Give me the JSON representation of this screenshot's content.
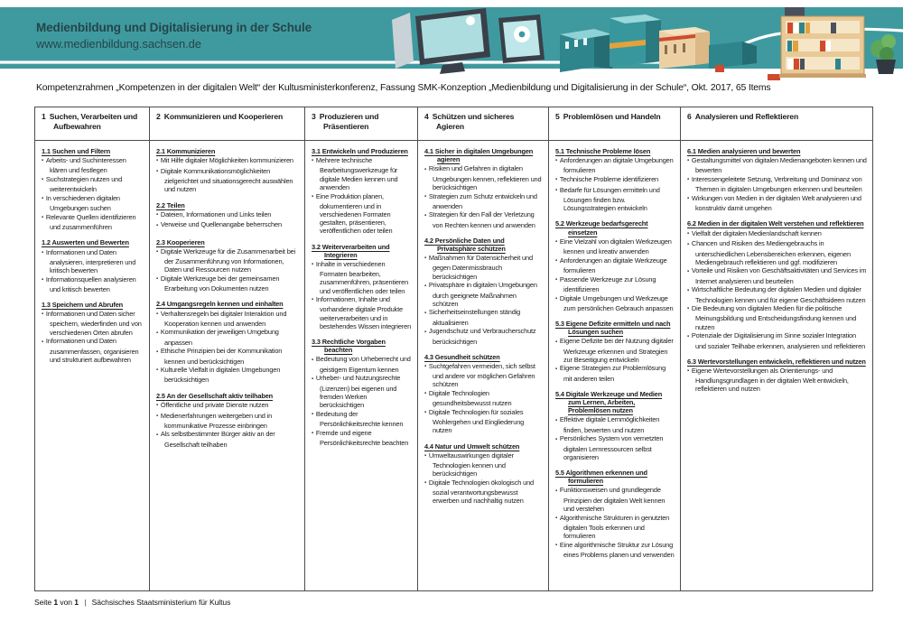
{
  "header": {
    "title": "Medienbildung und Digitalisierung in der Schule",
    "url": "www.medienbildung.sachsen.de"
  },
  "subtitle": "Kompetenzrahmen „Kompetenzen in der digitalen Welt“ der Kultusministerkonferenz, Fassung SMK-Konzeption „Medienbildung und Digitalisierung in der Schule“, Okt. 2017, 65 Items",
  "theme": {
    "teal": "#3f9aa0",
    "table_border": "#4d4d4d",
    "text": "#1a1a1a"
  },
  "table": {
    "columns": [
      {
        "number": "1",
        "title": "Suchen, Verarbeiten und Aufbewahren",
        "sections": [
          {
            "id": "1.1",
            "heading": "Suchen und Filtern",
            "items": [
              "Arbeits- und Suchinteressen klären und festlegen",
              "Suchstrategien nutzen und weiterentwickeln",
              "In verschiedenen digitalen Umgebungen suchen",
              "Relevante Quellen identifizieren und zusammenführen"
            ]
          },
          {
            "id": "1.2",
            "heading": "Auswerten und Bewerten",
            "items": [
              "Informationen und Daten analysieren, interpretieren und kritisch bewerten",
              "Informationsquellen analysieren und kritisch bewerten"
            ]
          },
          {
            "id": "1.3",
            "heading": "Speichern und Abrufen",
            "items": [
              "Informationen und Daten sicher speichern, wiederfinden und von verschiedenen Orten abrufen",
              "Informationen und Daten zusammenfassen, organisieren und strukturiert aufbewahren"
            ]
          }
        ]
      },
      {
        "number": "2",
        "title": "Kommunizieren und Kooperieren",
        "sections": [
          {
            "id": "2.1",
            "heading": "Kommunizieren",
            "items": [
              "Mit Hilfe digitaler Möglichkeiten kommunizieren",
              "Digitale Kommunikationsmöglichkeiten zielgerichtet und situationsgerecht auswählen und nutzen"
            ]
          },
          {
            "id": "2.2",
            "heading": "Teilen",
            "items": [
              "Dateien, Informationen und Links teilen",
              "Verweise und Quellenangabe beherrschen"
            ]
          },
          {
            "id": "2.3",
            "heading": "Kooperieren",
            "items": [
              "Digitale Werkzeuge für die Zusammenarbeit bei der Zusammenführung von Informationen, Daten und Ressourcen nutzen",
              "Digitale Werkzeuge bei der gemeinsamen Erarbeitung von Dokumenten nutzen"
            ]
          },
          {
            "id": "2.4",
            "heading": "Umgangsregeln kennen und einhalten",
            "items": [
              "Verhaltensregeln bei digitaler Interaktion und Kooperation kennen und anwenden",
              "Kommunikation der jeweiligen Umgebung anpassen",
              "Ethische Prinzipien bei der Kommunikation kennen und berücksichtigen",
              "Kulturelle Vielfalt in digitalen Umgebungen berücksichtigen"
            ]
          },
          {
            "id": "2.5",
            "heading": "An der Gesellschaft aktiv teilhaben",
            "items": [
              "Öffentliche und private Dienste nutzen",
              "Medienerfahrungen weitergeben und in kommunikative Prozesse einbringen",
              "Als selbstbestimmter Bürger aktiv an der Gesellschaft teilhaben"
            ]
          }
        ]
      },
      {
        "number": "3",
        "title": "Produzieren und Präsentieren",
        "sections": [
          {
            "id": "3.1",
            "heading": "Entwickeln und Produzieren",
            "items": [
              "Mehrere technische Bearbeitungswerkzeuge für digitale Medien kennen und anwenden",
              "Eine Produktion planen, dokumentieren und in verschiedenen Formaten gestalten, präsentieren, veröffentlichen oder teilen"
            ]
          },
          {
            "id": "3.2",
            "heading": "Weiterverarbeiten und Integrieren",
            "items": [
              "Inhalte in verschiedenen Formaten bearbeiten, zusammenführen, präsentieren und veröffentlichen oder teilen",
              "Informationen, Inhalte und vorhandene digitale Produkte weiterverarbeiten und in bestehendes Wissen integrieren"
            ]
          },
          {
            "id": "3.3",
            "heading": "Rechtliche Vorgaben beachten",
            "items": [
              "Bedeutung von Urheberrecht und geistigem Eigentum kennen",
              "Urheber- und Nutzungsrechte (Lizenzen) bei eigenen und fremden Werken berücksichtigen",
              "Bedeutung der Persönlichkeitsrechte kennen",
              "Fremde und eigene Persönlichkeitsrechte beachten"
            ]
          }
        ]
      },
      {
        "number": "4",
        "title": "Schützen und sicheres Agieren",
        "sections": [
          {
            "id": "4.1",
            "heading": "Sicher in digitalen Umgebungen agieren",
            "items": [
              "Risiken und Gefahren in digitalen Umgebungen kennen, reflektieren und berücksichtigen",
              "Strategien zum Schutz entwickeln und anwenden",
              "Strategien für den Fall der Verletzung von Rechten kennen und anwenden"
            ]
          },
          {
            "id": "4.2",
            "heading": "Persönliche Daten und Privatsphäre schützen",
            "items": [
              "Maßnahmen für Datensicherheit und gegen Datenmissbrauch berücksichtigen",
              "Privatsphäre in digitalen Umgebungen durch geeignete Maßnahmen schützen",
              "Sicherheitseinstellungen ständig aktualisieren",
              "Jugendschutz und Verbraucherschutz berücksichtigen"
            ]
          },
          {
            "id": "4.3",
            "heading": "Gesundheit schützen",
            "items": [
              "Suchtgefahren vermeiden, sich selbst und andere vor möglichen Gefahren schützen",
              "Digitale Technologien gesundheitsbewusst nutzen",
              "Digitale Technologien für soziales Wohlergehen und Eingliederung nutzen"
            ]
          },
          {
            "id": "4.4",
            "heading": "Natur und Umwelt schützen",
            "items": [
              "Umweltauswirkungen digitaler Technologien kennen und berücksichtigen",
              "Digitale Technologien ökologisch und sozial verantwortungsbewusst erwerben und nachhaltig nutzen"
            ]
          }
        ]
      },
      {
        "number": "5",
        "title": "Problemlösen und Handeln",
        "sections": [
          {
            "id": "5.1",
            "heading": "Technische Probleme lösen",
            "items": [
              "Anforderungen an digitale Umgebungen formulieren",
              "Technische Probleme identifizieren",
              "Bedarfe für Lösungen ermitteln und Lösungen finden bzw. Lösungsstrategien entwickeln"
            ]
          },
          {
            "id": "5.2",
            "heading": "Werkzeuge bedarfsgerecht einsetzen",
            "items": [
              "Eine Vielzahl von digitalen Werkzeugen kennen und kreativ anwenden",
              "Anforderungen an digitale Werkzeuge formulieren",
              "Passende Werkzeuge zur Lösung identifizieren",
              "Digitale Umgebungen und Werkzeuge zum persönlichen Gebrauch anpassen"
            ]
          },
          {
            "id": "5.3",
            "heading": "Eigene Defizite ermitteln und nach Lösungen suchen",
            "items": [
              "Eigene Defizite bei der Nutzung digitaler Werkzeuge erkennen und Strategien zur Beseitigung entwickeln",
              "Eigene Strategien zur Problemlösung mit anderen teilen"
            ]
          },
          {
            "id": "5.4",
            "heading": "Digitale Werkzeuge und Medien zum Lernen, Arbeiten, Problemlösen nutzen",
            "items": [
              "Effektive digitale Lernmöglichkeiten finden, bewerten und nutzen",
              "Persönliches System von vernetzten digitalen Lernressourcen selbst organisieren"
            ]
          },
          {
            "id": "5.5",
            "heading": "Algorithmen erkennen und formulieren",
            "items": [
              "Funktionsweisen und grundlegende Prinzipien der digitalen Welt kennen und verstehen",
              "Algorithmische Strukturen in genutzten digitalen Tools erkennen und formulieren",
              "Eine algorithmische Struktur zur Lösung eines Problems planen und verwenden"
            ]
          }
        ]
      },
      {
        "number": "6",
        "title": "Analysieren und Reflektieren",
        "sections": [
          {
            "id": "6.1",
            "heading": "Medien analysieren und bewerten",
            "items": [
              "Gestaltungsmittel von digitalen Medienangeboten kennen und bewerten",
              "Interessengeleitete Setzung, Verbreitung und Dominanz von Themen in digitalen Umgebungen erkennen und beurteilen",
              "Wirkungen von Medien in der digitalen Welt analysieren und konstruktiv damit umgehen"
            ]
          },
          {
            "id": "6.2",
            "heading": "Medien in der digitalen Welt verstehen und reflektieren",
            "items": [
              "Vielfalt der digitalen Medienlandschaft kennen",
              "Chancen und Risiken des Mediengebrauchs in unterschiedlichen Lebensbereichen erkennen, eigenen Mediengebrauch reflektieren und ggf. modifizieren",
              "Vorteile und Risiken von Geschäftsaktivitäten und Services im Internet analysieren und beurteilen",
              "Wirtschaftliche Bedeutung der digitalen Medien und digitaler Technologien kennen und für eigene Geschäftsideen nutzen",
              "Die Bedeutung von digitalen Medien für die politische Meinungsbildung und Entscheidungsfindung kennen und nutzen",
              "Potenziale der Digitalisierung im Sinne sozialer Integration und sozialer Teilhabe erkennen, analysieren und reflektieren"
            ]
          },
          {
            "id": "6.3",
            "heading": "Wertevorstellungen entwickeln, reflektieren und nutzen",
            "items": [
              "Eigene Wertevorstellungen als Orientierungs- und Handlungsgrundlagen in der digitalen Welt entwickeln, reflektieren und nutzen"
            ]
          }
        ]
      }
    ]
  },
  "footer": {
    "page_label": "Seite",
    "page_number": "1",
    "of_label": "von",
    "page_total": "1",
    "separator": "|",
    "organization": "Sächsisches Staatsministerium für Kultus"
  }
}
